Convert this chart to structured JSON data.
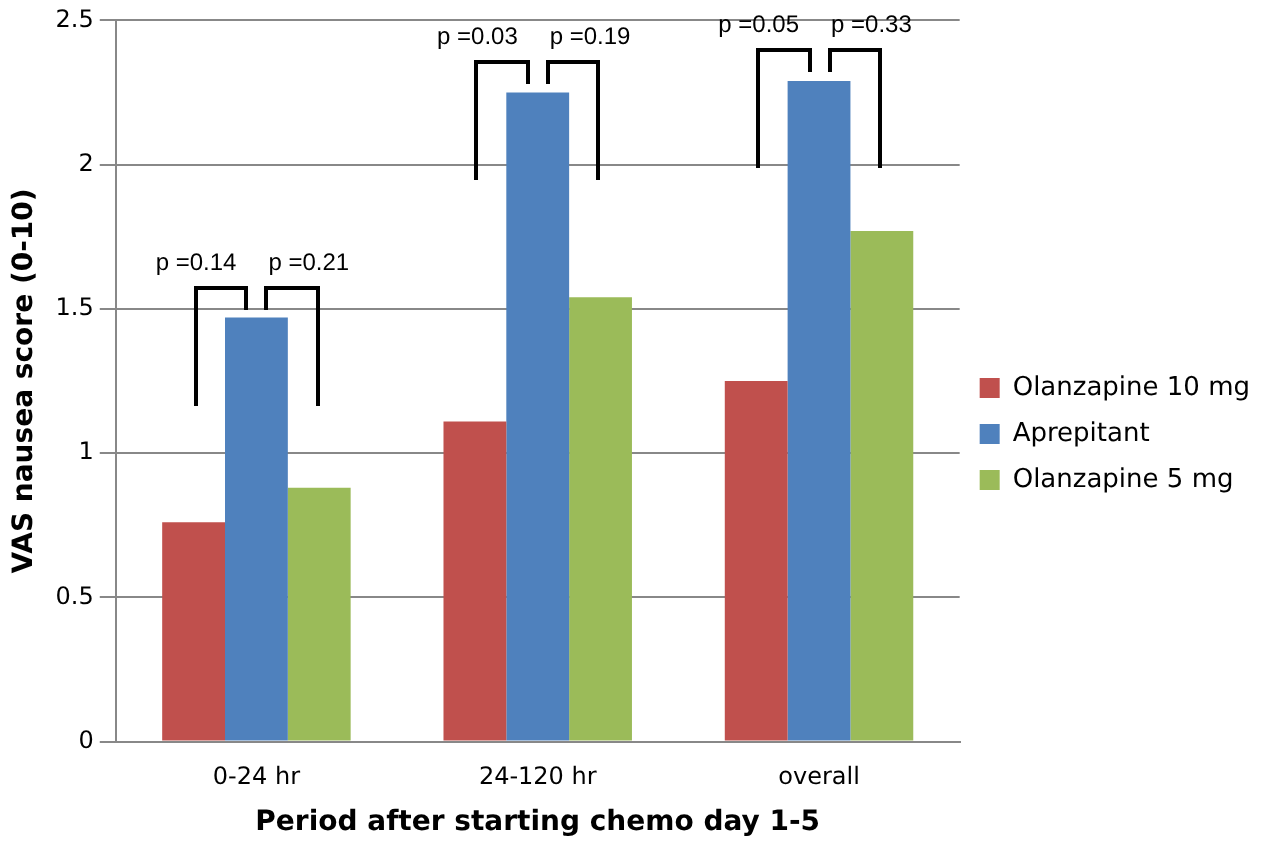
{
  "chart_data": {
    "type": "bar",
    "xlabel": "Period after starting chemo day 1-5",
    "ylabel": "VAS nausea score (0-10)",
    "categories": [
      "0-24 hr",
      "24-120 hr",
      "overall"
    ],
    "series": [
      {
        "name": "Olanzapine 10 mg",
        "color": "#c0504d",
        "values": [
          0.76,
          1.11,
          1.25
        ]
      },
      {
        "name": "Aprepitant",
        "color": "#4f81bd",
        "values": [
          1.47,
          2.25,
          2.29
        ]
      },
      {
        "name": "Olanzapine 5 mg",
        "color": "#9bbb59",
        "values": [
          0.88,
          1.54,
          1.77
        ]
      }
    ],
    "ylim": [
      0,
      2.5
    ],
    "yticks": [
      0,
      0.5,
      1,
      1.5,
      2,
      2.5
    ],
    "grid": "y",
    "legend": "right",
    "annotations": [
      "p =0.14",
      "p =0.21",
      "p =0.03",
      "p =0.19",
      "p =0.05",
      "p =0.33"
    ]
  }
}
